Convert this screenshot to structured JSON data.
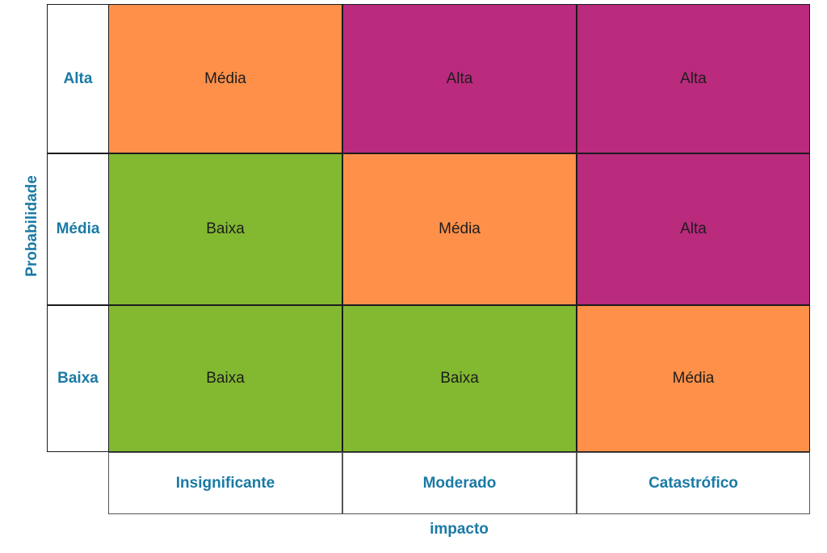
{
  "axes": {
    "y_title": "Probabilidade",
    "x_title": "impacto"
  },
  "rows": [
    "Alta",
    "Média",
    "Baixa"
  ],
  "columns": [
    "Insignificante",
    "Moderado",
    "Catastrófico"
  ],
  "cells": [
    [
      "Média",
      "Alta",
      "Alta"
    ],
    [
      "Baixa",
      "Média",
      "Alta"
    ],
    [
      "Baixa",
      "Baixa",
      "Média"
    ]
  ],
  "colors": {
    "Baixa": "#82b931",
    "Média": "#fe904a",
    "Alta": "#ba2a7d",
    "axis_text": "#1a7aa5"
  }
}
